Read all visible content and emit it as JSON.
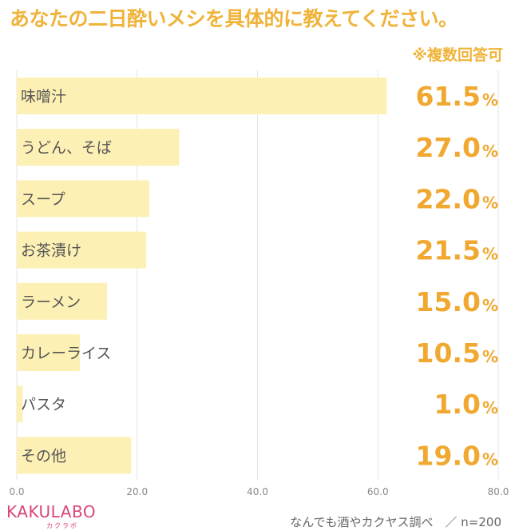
{
  "header": {
    "title": "あなたの二日酔いメシを具体的に教えてください。",
    "note": "※複数回答可"
  },
  "chart_data": {
    "type": "bar",
    "orientation": "horizontal",
    "categories": [
      "味噌汁",
      "うどん、そば",
      "スープ",
      "お茶漬け",
      "ラーメン",
      "カレーライス",
      "パスタ",
      "その他"
    ],
    "values": [
      61.5,
      27.0,
      22.0,
      21.5,
      15.0,
      10.5,
      1.0,
      19.0
    ],
    "value_labels": [
      "61.5",
      "27.0",
      "22.0",
      "21.5",
      "15.0",
      "10.5",
      "1.0",
      "19.0"
    ],
    "unit": "%",
    "xlim": [
      0,
      80
    ],
    "xticks": [
      "0.0",
      "20.0",
      "40.0",
      "60.0",
      "80.0"
    ],
    "grid": true,
    "bar_color": "#fdf0b4",
    "label_color": "#f0a830"
  },
  "footer": {
    "logo": "KAKULABO",
    "logo_sub": "カクラボ",
    "source": "なんでも酒やカクヤス調べ　／ n=200"
  }
}
